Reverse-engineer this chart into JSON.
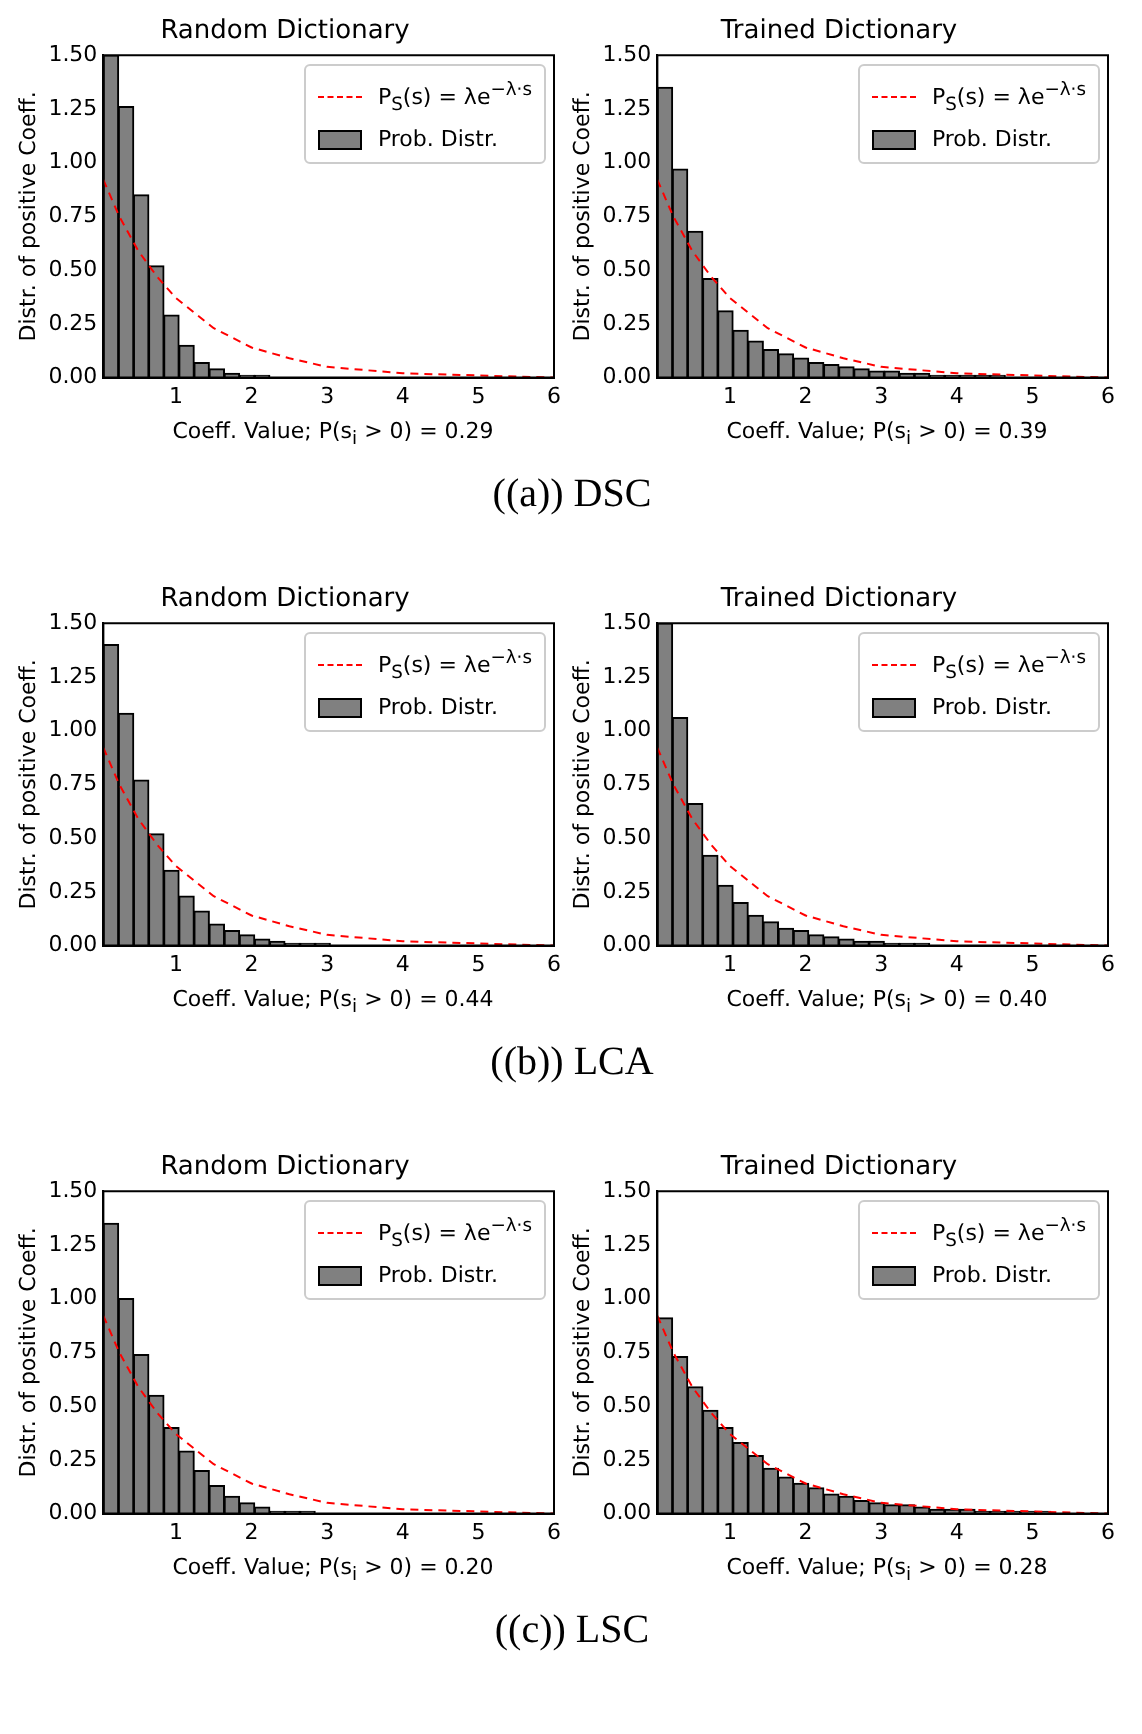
{
  "chart_data": [
    {
      "type": "histogram",
      "title": "Random Dictionary",
      "xlabel": "Coeff. Value; P(s$_{i}$ > 0) = 0.29",
      "ylabel": "Distr. of positive Coeff.",
      "annotations": [
        "((a)) DSC"
      ],
      "legend": "top right",
      "grid": false,
      "bins": [
        0.04,
        0.24,
        0.44,
        0.64,
        0.84,
        1.04,
        1.24,
        1.44,
        1.64,
        1.84,
        2.04,
        2.24
      ],
      "xlim": [
        0.04,
        6
      ],
      "xticks": [
        1,
        2,
        3,
        4,
        5,
        6
      ],
      "ylim": [
        0,
        1.5
      ],
      "yticks": [
        {
          "value": 0,
          "label": "0.00"
        },
        {
          "value": 0.25,
          "label": "0.25"
        },
        {
          "value": 0.5,
          "label": "0.50"
        },
        {
          "value": 0.75,
          "label": "0.75"
        },
        {
          "value": 1,
          "label": "1.00"
        },
        {
          "value": 1.25,
          "label": "1.25"
        },
        {
          "value": 1.5,
          "label": "1.50"
        }
      ],
      "series": [
        {
          "name": "P$_{S}$(s) = λe$^{−λ·s}$",
          "type": "line",
          "color": "#ff0000",
          "line_style": "dashed",
          "x": [
            0.04,
            0.25,
            0.5,
            0.75,
            1,
            1.5,
            2,
            2.5,
            3,
            4,
            5,
            6
          ],
          "values": [
            0.92,
            0.75,
            0.59,
            0.47,
            0.37,
            0.23,
            0.14,
            0.09,
            0.05,
            0.02,
            0.01,
            0
          ]
        },
        {
          "name": "Prob. Distr.",
          "color": "#808080",
          "values": [
            1.5,
            1.26,
            0.85,
            0.52,
            0.29,
            0.15,
            0.07,
            0.04,
            0.02,
            0.01,
            0.01
          ]
        }
      ]
    },
    {
      "type": "histogram",
      "title": "Trained Dictionary",
      "xlabel": "Coeff. Value; P(s$_{i}$ > 0) = 0.39",
      "ylabel": "Distr. of positive Coeff.",
      "legend": "top right",
      "grid": false,
      "bins": [
        0.04,
        0.24,
        0.44,
        0.64,
        0.84,
        1.04,
        1.24,
        1.44,
        1.64,
        1.84,
        2.04,
        2.24,
        2.44,
        2.64,
        2.84,
        3.04,
        3.24,
        3.44,
        3.64,
        3.84,
        4.04,
        4.24,
        4.44,
        4.64
      ],
      "xlim": [
        0.04,
        6
      ],
      "xticks": [
        1,
        2,
        3,
        4,
        5,
        6
      ],
      "ylim": [
        0,
        1.5
      ],
      "yticks": [
        {
          "value": 0,
          "label": "0.00"
        },
        {
          "value": 0.25,
          "label": "0.25"
        },
        {
          "value": 0.5,
          "label": "0.50"
        },
        {
          "value": 0.75,
          "label": "0.75"
        },
        {
          "value": 1,
          "label": "1.00"
        },
        {
          "value": 1.25,
          "label": "1.25"
        },
        {
          "value": 1.5,
          "label": "1.50"
        }
      ],
      "series": [
        {
          "name": "P$_{S}$(s) = λe$^{−λ·s}$",
          "type": "line",
          "color": "#ff0000",
          "line_style": "dashed",
          "x": [
            0.04,
            0.25,
            0.5,
            0.75,
            1,
            1.5,
            2,
            2.5,
            3,
            4,
            5,
            6
          ],
          "values": [
            0.92,
            0.75,
            0.59,
            0.47,
            0.37,
            0.23,
            0.14,
            0.09,
            0.05,
            0.02,
            0.01,
            0
          ]
        },
        {
          "name": "Prob. Distr.",
          "color": "#808080",
          "values": [
            1.35,
            0.97,
            0.68,
            0.46,
            0.31,
            0.22,
            0.17,
            0.13,
            0.11,
            0.09,
            0.07,
            0.06,
            0.05,
            0.04,
            0.03,
            0.03,
            0.02,
            0.02,
            0.01,
            0.01,
            0.01,
            0.01,
            0.01
          ]
        }
      ]
    },
    {
      "type": "histogram",
      "title": "Random Dictionary",
      "xlabel": "Coeff. Value; P(s$_{i}$ > 0) = 0.44",
      "ylabel": "Distr. of positive Coeff.",
      "annotations": [
        "((b)) LCA"
      ],
      "legend": "top right",
      "grid": false,
      "bins": [
        0.04,
        0.24,
        0.44,
        0.64,
        0.84,
        1.04,
        1.24,
        1.44,
        1.64,
        1.84,
        2.04,
        2.24,
        2.44,
        2.64,
        2.84,
        3.04
      ],
      "xlim": [
        0.04,
        6
      ],
      "xticks": [
        1,
        2,
        3,
        4,
        5,
        6
      ],
      "ylim": [
        0,
        1.5
      ],
      "yticks": [
        {
          "value": 0,
          "label": "0.00"
        },
        {
          "value": 0.25,
          "label": "0.25"
        },
        {
          "value": 0.5,
          "label": "0.50"
        },
        {
          "value": 0.75,
          "label": "0.75"
        },
        {
          "value": 1,
          "label": "1.00"
        },
        {
          "value": 1.25,
          "label": "1.25"
        },
        {
          "value": 1.5,
          "label": "1.50"
        }
      ],
      "series": [
        {
          "name": "P$_{S}$(s) = λe$^{−λ·s}$",
          "type": "line",
          "color": "#ff0000",
          "line_style": "dashed",
          "x": [
            0.04,
            0.25,
            0.5,
            0.75,
            1,
            1.5,
            2,
            2.5,
            3,
            4,
            5,
            6
          ],
          "values": [
            0.92,
            0.75,
            0.59,
            0.47,
            0.37,
            0.23,
            0.14,
            0.09,
            0.05,
            0.02,
            0.01,
            0
          ]
        },
        {
          "name": "Prob. Distr.",
          "color": "#808080",
          "values": [
            1.4,
            1.08,
            0.77,
            0.52,
            0.35,
            0.23,
            0.16,
            0.1,
            0.07,
            0.05,
            0.03,
            0.02,
            0.01,
            0.01,
            0.01
          ]
        }
      ]
    },
    {
      "type": "histogram",
      "title": "Trained Dictionary",
      "xlabel": "Coeff. Value; P(s$_{i}$ > 0) = 0.40",
      "ylabel": "Distr. of positive Coeff.",
      "legend": "top right",
      "grid": false,
      "bins": [
        0.04,
        0.24,
        0.44,
        0.64,
        0.84,
        1.04,
        1.24,
        1.44,
        1.64,
        1.84,
        2.04,
        2.24,
        2.44,
        2.64,
        2.84,
        3.04,
        3.24,
        3.44,
        3.64
      ],
      "xlim": [
        0.04,
        6
      ],
      "xticks": [
        1,
        2,
        3,
        4,
        5,
        6
      ],
      "ylim": [
        0,
        1.5
      ],
      "yticks": [
        {
          "value": 0,
          "label": "0.00"
        },
        {
          "value": 0.25,
          "label": "0.25"
        },
        {
          "value": 0.5,
          "label": "0.50"
        },
        {
          "value": 0.75,
          "label": "0.75"
        },
        {
          "value": 1,
          "label": "1.00"
        },
        {
          "value": 1.25,
          "label": "1.25"
        },
        {
          "value": 1.5,
          "label": "1.50"
        }
      ],
      "series": [
        {
          "name": "P$_{S}$(s) = λe$^{−λ·s}$",
          "type": "line",
          "color": "#ff0000",
          "line_style": "dashed",
          "x": [
            0.04,
            0.25,
            0.5,
            0.75,
            1,
            1.5,
            2,
            2.5,
            3,
            4,
            5,
            6
          ],
          "values": [
            0.92,
            0.75,
            0.59,
            0.47,
            0.37,
            0.23,
            0.14,
            0.09,
            0.05,
            0.02,
            0.01,
            0
          ]
        },
        {
          "name": "Prob. Distr.",
          "color": "#808080",
          "values": [
            1.5,
            1.06,
            0.66,
            0.42,
            0.28,
            0.2,
            0.14,
            0.11,
            0.08,
            0.07,
            0.05,
            0.04,
            0.03,
            0.02,
            0.02,
            0.01,
            0.01,
            0.01
          ]
        }
      ]
    },
    {
      "type": "histogram",
      "title": "Random Dictionary",
      "xlabel": "Coeff. Value; P(s$_{i}$ > 0) = 0.20",
      "ylabel": "Distr. of positive Coeff.",
      "annotations": [
        "((c)) LSC"
      ],
      "legend": "top right",
      "grid": false,
      "bins": [
        0.04,
        0.24,
        0.44,
        0.64,
        0.84,
        1.04,
        1.24,
        1.44,
        1.64,
        1.84,
        2.04,
        2.24,
        2.44,
        2.64,
        2.84
      ],
      "xlim": [
        0.04,
        6
      ],
      "xticks": [
        1,
        2,
        3,
        4,
        5,
        6
      ],
      "ylim": [
        0,
        1.5
      ],
      "yticks": [
        {
          "value": 0,
          "label": "0.00"
        },
        {
          "value": 0.25,
          "label": "0.25"
        },
        {
          "value": 0.5,
          "label": "0.50"
        },
        {
          "value": 0.75,
          "label": "0.75"
        },
        {
          "value": 1,
          "label": "1.00"
        },
        {
          "value": 1.25,
          "label": "1.25"
        },
        {
          "value": 1.5,
          "label": "1.50"
        }
      ],
      "series": [
        {
          "name": "P$_{S}$(s) = λe$^{−λ·s}$",
          "type": "line",
          "color": "#ff0000",
          "line_style": "dashed",
          "x": [
            0.04,
            0.25,
            0.5,
            0.75,
            1,
            1.5,
            2,
            2.5,
            3,
            4,
            5,
            6
          ],
          "values": [
            0.92,
            0.75,
            0.59,
            0.47,
            0.37,
            0.23,
            0.14,
            0.09,
            0.05,
            0.02,
            0.01,
            0
          ]
        },
        {
          "name": "Prob. Distr.",
          "color": "#808080",
          "values": [
            1.35,
            1.0,
            0.74,
            0.55,
            0.4,
            0.29,
            0.2,
            0.13,
            0.08,
            0.05,
            0.03,
            0.01,
            0.01,
            0.01
          ]
        }
      ]
    },
    {
      "type": "histogram",
      "title": "Trained Dictionary",
      "xlabel": "Coeff. Value; P(s$_{i}$ > 0) = 0.28",
      "ylabel": "Distr. of positive Coeff.",
      "legend": "top right",
      "grid": false,
      "bins": [
        0.04,
        0.24,
        0.44,
        0.64,
        0.84,
        1.04,
        1.24,
        1.44,
        1.64,
        1.84,
        2.04,
        2.24,
        2.44,
        2.64,
        2.84,
        3.04,
        3.24,
        3.44,
        3.64,
        3.84,
        4.04,
        4.24,
        4.44,
        4.64,
        4.84,
        5.04,
        5.24
      ],
      "xlim": [
        0.04,
        6
      ],
      "xticks": [
        1,
        2,
        3,
        4,
        5,
        6
      ],
      "ylim": [
        0,
        1.5
      ],
      "yticks": [
        {
          "value": 0,
          "label": "0.00"
        },
        {
          "value": 0.25,
          "label": "0.25"
        },
        {
          "value": 0.5,
          "label": "0.50"
        },
        {
          "value": 0.75,
          "label": "0.75"
        },
        {
          "value": 1,
          "label": "1.00"
        },
        {
          "value": 1.25,
          "label": "1.25"
        },
        {
          "value": 1.5,
          "label": "1.50"
        }
      ],
      "series": [
        {
          "name": "P$_{S}$(s) = λe$^{−λ·s}$",
          "type": "line",
          "color": "#ff0000",
          "line_style": "dashed",
          "x": [
            0.04,
            0.25,
            0.5,
            0.75,
            1,
            1.5,
            2,
            2.5,
            3,
            4,
            5,
            6
          ],
          "values": [
            0.92,
            0.75,
            0.59,
            0.47,
            0.37,
            0.23,
            0.14,
            0.09,
            0.05,
            0.02,
            0.01,
            0
          ]
        },
        {
          "name": "Prob. Distr.",
          "color": "#808080",
          "values": [
            0.91,
            0.73,
            0.59,
            0.48,
            0.4,
            0.33,
            0.27,
            0.21,
            0.17,
            0.14,
            0.12,
            0.09,
            0.08,
            0.06,
            0.05,
            0.04,
            0.04,
            0.03,
            0.02,
            0.02,
            0.02,
            0.01,
            0.01,
            0.01,
            0.01,
            0.01
          ]
        }
      ]
    }
  ]
}
